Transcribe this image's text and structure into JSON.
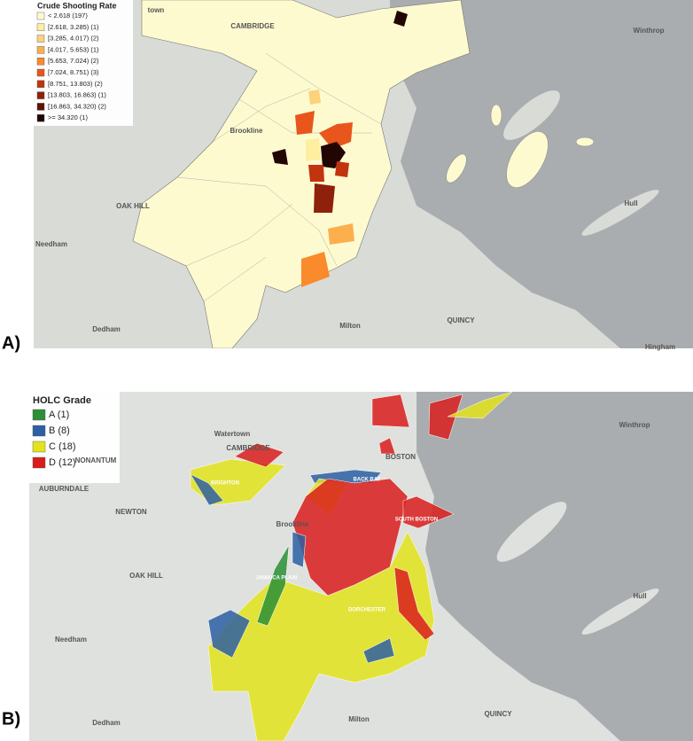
{
  "panels": [
    {
      "label": "A)",
      "legend": {
        "title": "Crude Shooting Rate",
        "items": [
          {
            "label": "< 2.618 (197)",
            "color": "#fffacd"
          },
          {
            "label": "[2.618, 3.285) (1)",
            "color": "#fdeea0"
          },
          {
            "label": "[3.285, 4.017) (2)",
            "color": "#fcd27a"
          },
          {
            "label": "[4.017, 5.653) (1)",
            "color": "#fbb04d"
          },
          {
            "label": "[5.653, 7.024) (2)",
            "color": "#f98b2c"
          },
          {
            "label": "[7.024, 8.751) (3)",
            "color": "#e8561b"
          },
          {
            "label": "[8.751, 13.803) (2)",
            "color": "#c2330f"
          },
          {
            "label": "[13.803, 16.863) (1)",
            "color": "#8f200b"
          },
          {
            "label": "[16.863, 34.320) (2)",
            "color": "#5c1407"
          },
          {
            "label": ">= 34.320 (1)",
            "color": "#220603"
          }
        ]
      },
      "places": [
        "CAMBRIDGE",
        "Winthrop",
        "Brookline",
        "OAK HILL",
        "Needham",
        "Hull",
        "Dedham",
        "Milton",
        "QUINCY",
        "Hingham",
        "town"
      ]
    },
    {
      "label": "B)",
      "legend": {
        "title": "HOLC Grade",
        "items": [
          {
            "label": "A (1)",
            "color": "#2a8f35"
          },
          {
            "label": "B (8)",
            "color": "#2d5fa3"
          },
          {
            "label": "C (18)",
            "color": "#e3e31c"
          },
          {
            "label": "D (12)",
            "color": "#d91d1d"
          }
        ]
      },
      "places": [
        "CAMBRIDGE",
        "Watertown",
        "NONANTUM",
        "AUBURNDALE",
        "NEWTON",
        "BOSTON",
        "Winthrop",
        "Brookline",
        "OAK HILL",
        "Needham",
        "Hull",
        "Dedham",
        "Milton",
        "QUINCY",
        "BRIGHTON",
        "BACK BAY",
        "SOUTH BOSTON",
        "DORCHESTER",
        "JAMAICA PLAIN"
      ]
    }
  ]
}
